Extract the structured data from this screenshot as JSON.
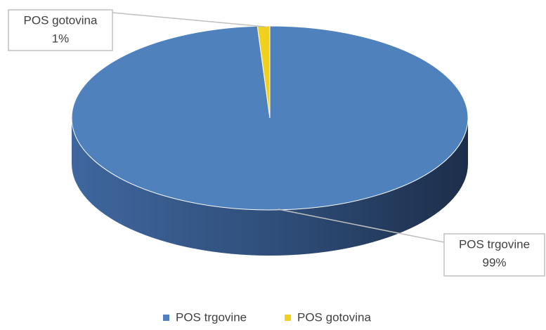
{
  "chart_data": {
    "type": "pie",
    "categories": [
      "POS trgovine",
      "POS gotovina"
    ],
    "values": [
      99,
      1
    ],
    "value_labels": [
      "99%",
      "1%"
    ],
    "colors": [
      "#4f81bd",
      "#f2d01e"
    ],
    "legend": "bottom"
  }
}
